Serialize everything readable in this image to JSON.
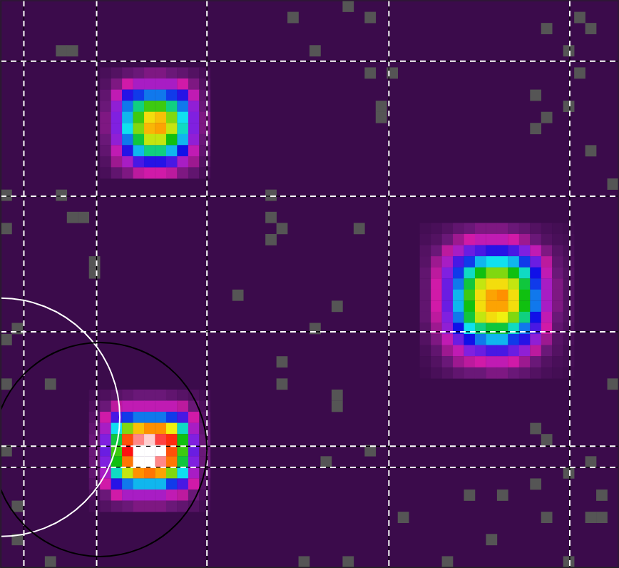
{
  "chart_data": {
    "type": "heatmap",
    "xlim": [
      0,
      56
    ],
    "ylim": [
      51,
      0
    ],
    "xticks": [
      2.1,
      8.7,
      18.7,
      35.2,
      51.6
    ],
    "yticks": [
      5.45,
      17.6,
      29.8,
      40.1,
      42
    ],
    "grid": true,
    "tick_labels": false,
    "zlim": [
      0,
      100
    ],
    "patches": [
      {
        "col": 9,
        "row": 6,
        "values": [
          [
            3,
            5,
            8,
            10,
            12,
            12,
            10,
            8,
            5,
            3
          ],
          [
            5,
            12,
            20,
            25,
            25,
            25,
            25,
            20,
            12,
            5
          ],
          [
            8,
            22,
            38,
            42,
            45,
            45,
            42,
            38,
            22,
            8
          ],
          [
            10,
            28,
            45,
            55,
            62,
            62,
            55,
            45,
            28,
            10
          ],
          [
            12,
            30,
            48,
            62,
            72,
            75,
            65,
            50,
            30,
            12
          ],
          [
            12,
            30,
            50,
            65,
            76,
            78,
            68,
            52,
            30,
            12
          ],
          [
            10,
            28,
            45,
            58,
            68,
            68,
            60,
            48,
            28,
            10
          ],
          [
            8,
            22,
            38,
            48,
            55,
            55,
            48,
            40,
            22,
            8
          ],
          [
            5,
            15,
            25,
            35,
            38,
            38,
            35,
            25,
            15,
            5
          ],
          [
            3,
            8,
            12,
            18,
            20,
            20,
            18,
            12,
            8,
            3
          ]
        ]
      },
      {
        "col": 38,
        "row": 20,
        "values": [
          [
            2,
            3,
            5,
            8,
            10,
            12,
            12,
            12,
            10,
            8,
            5,
            3,
            2,
            1
          ],
          [
            3,
            5,
            10,
            15,
            20,
            22,
            22,
            22,
            20,
            15,
            10,
            5,
            3,
            2
          ],
          [
            5,
            10,
            18,
            25,
            32,
            35,
            38,
            38,
            35,
            30,
            22,
            12,
            6,
            3
          ],
          [
            6,
            15,
            25,
            35,
            42,
            48,
            50,
            50,
            48,
            42,
            32,
            18,
            8,
            4
          ],
          [
            8,
            18,
            30,
            42,
            52,
            60,
            65,
            65,
            60,
            52,
            40,
            22,
            10,
            5
          ],
          [
            8,
            20,
            32,
            45,
            58,
            68,
            72,
            72,
            68,
            58,
            42,
            25,
            12,
            5
          ],
          [
            8,
            20,
            32,
            48,
            62,
            72,
            78,
            80,
            72,
            60,
            45,
            25,
            12,
            5
          ],
          [
            8,
            20,
            32,
            48,
            60,
            72,
            78,
            78,
            72,
            60,
            45,
            25,
            12,
            5
          ],
          [
            8,
            18,
            30,
            45,
            58,
            68,
            72,
            70,
            65,
            55,
            40,
            22,
            10,
            5
          ],
          [
            6,
            15,
            28,
            40,
            50,
            55,
            58,
            58,
            52,
            45,
            35,
            20,
            8,
            4
          ],
          [
            5,
            12,
            22,
            32,
            40,
            45,
            48,
            48,
            42,
            38,
            28,
            15,
            6,
            3
          ],
          [
            3,
            8,
            15,
            22,
            30,
            32,
            35,
            35,
            32,
            28,
            18,
            10,
            5,
            2
          ],
          [
            2,
            5,
            10,
            15,
            18,
            20,
            22,
            22,
            20,
            15,
            10,
            5,
            3,
            2
          ],
          [
            1,
            3,
            5,
            8,
            10,
            10,
            12,
            12,
            10,
            8,
            5,
            3,
            2,
            1
          ]
        ]
      },
      {
        "col": 8,
        "row": 35,
        "values": [
          [
            2,
            4,
            6,
            8,
            10,
            10,
            10,
            8,
            6,
            4,
            2
          ],
          [
            4,
            10,
            18,
            22,
            22,
            22,
            22,
            22,
            18,
            10,
            4
          ],
          [
            6,
            20,
            35,
            42,
            45,
            45,
            45,
            42,
            35,
            20,
            6
          ],
          [
            8,
            25,
            50,
            65,
            75,
            80,
            80,
            70,
            52,
            25,
            8
          ],
          [
            10,
            30,
            58,
            85,
            95,
            98,
            92,
            88,
            60,
            30,
            10
          ],
          [
            10,
            32,
            62,
            90,
            100,
            100,
            100,
            85,
            62,
            32,
            10
          ],
          [
            10,
            30,
            60,
            82,
            100,
            100,
            95,
            82,
            58,
            30,
            10
          ],
          [
            8,
            25,
            52,
            68,
            80,
            82,
            78,
            65,
            50,
            25,
            8
          ],
          [
            6,
            20,
            38,
            45,
            48,
            48,
            48,
            42,
            35,
            20,
            6
          ],
          [
            4,
            10,
            20,
            25,
            25,
            25,
            25,
            22,
            18,
            10,
            4
          ],
          [
            2,
            5,
            8,
            10,
            12,
            12,
            12,
            10,
            8,
            5,
            2
          ]
        ]
      }
    ],
    "masked": [
      [
        26,
        1
      ],
      [
        31,
        0
      ],
      [
        33,
        1
      ],
      [
        52,
        1
      ],
      [
        53,
        2
      ],
      [
        5,
        4
      ],
      [
        6,
        4
      ],
      [
        28,
        4
      ],
      [
        33,
        6
      ],
      [
        35,
        6
      ],
      [
        52,
        6
      ],
      [
        34,
        9
      ],
      [
        34,
        10
      ],
      [
        51,
        9
      ],
      [
        49,
        10
      ],
      [
        48,
        11
      ],
      [
        48,
        8
      ],
      [
        49,
        2
      ],
      [
        51,
        4
      ],
      [
        53,
        13
      ],
      [
        55,
        16
      ],
      [
        0,
        17
      ],
      [
        5,
        17
      ],
      [
        24,
        17
      ],
      [
        6,
        19
      ],
      [
        7,
        19
      ],
      [
        24,
        19
      ],
      [
        25,
        20
      ],
      [
        24,
        21
      ],
      [
        32,
        20
      ],
      [
        0,
        20
      ],
      [
        8,
        23
      ],
      [
        8,
        24
      ],
      [
        21,
        26
      ],
      [
        30,
        27
      ],
      [
        28,
        29
      ],
      [
        1,
        29
      ],
      [
        25,
        32
      ],
      [
        0,
        30
      ],
      [
        0,
        34
      ],
      [
        4,
        34
      ],
      [
        25,
        34
      ],
      [
        30,
        35
      ],
      [
        30,
        36
      ],
      [
        55,
        34
      ],
      [
        48,
        38
      ],
      [
        49,
        39
      ],
      [
        33,
        40
      ],
      [
        29,
        41
      ],
      [
        0,
        40
      ],
      [
        53,
        41
      ],
      [
        51,
        42
      ],
      [
        48,
        43
      ],
      [
        54,
        44
      ],
      [
        42,
        44
      ],
      [
        45,
        44
      ],
      [
        1,
        45
      ],
      [
        36,
        46
      ],
      [
        49,
        46
      ],
      [
        53,
        46
      ],
      [
        54,
        46
      ],
      [
        44,
        48
      ],
      [
        27,
        50
      ],
      [
        31,
        50
      ],
      [
        40,
        50
      ],
      [
        4,
        50
      ],
      [
        1,
        48
      ],
      [
        51,
        50
      ]
    ],
    "regions": [
      {
        "x": 0,
        "y": 37.5,
        "r": 10.8,
        "color": "#ffffff"
      },
      {
        "x": 9.0,
        "y": 40.4,
        "r": 9.7,
        "color": "#000000"
      }
    ]
  }
}
